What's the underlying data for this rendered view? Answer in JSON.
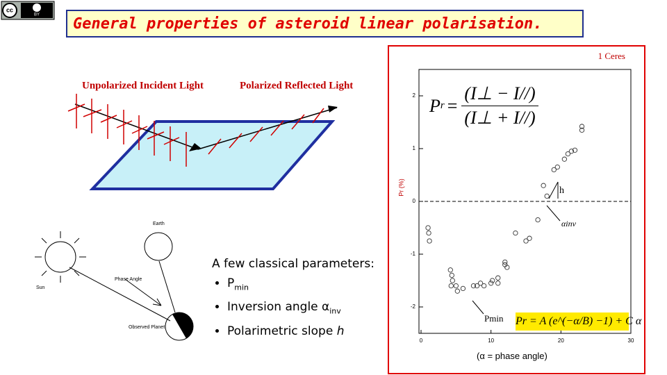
{
  "title": "General properties of asteroid linear polarisation.",
  "license": {
    "cc": "cc",
    "by": "BY"
  },
  "polarization_diagram": {
    "incident": "Unpolarized Incident Light",
    "reflected": "Polarized Reflected Light"
  },
  "geometry_diagram": {
    "earth": "Earth",
    "sun": "Sun",
    "phase_angle": "Phase Angle",
    "planet": "Observed Planet"
  },
  "parameters": {
    "heading": "A few classical parameters:",
    "items": [
      {
        "text": "P",
        "sub": "min"
      },
      {
        "text": "Inversion angle α",
        "sub": "inv"
      },
      {
        "text": "Polarimetric slope ",
        "italic": "h"
      }
    ]
  },
  "caption": "(α = phase angle)",
  "chart_data": {
    "type": "scatter",
    "title": "1 Ceres",
    "ylabel": "Pr (%)",
    "formula_ratio": {
      "lhs": "P",
      "lhs_sub": "r",
      "eq": "=",
      "numerator": "(I⊥ − I//)",
      "denominator": "(I⊥ + I//)"
    },
    "formula_fit": "Pr = A (e^(−α/B) −1) + C α",
    "annotations": {
      "slope": "h",
      "inversion": "αinv",
      "minimum": "Pmin"
    },
    "x": [
      1,
      1.1,
      1.2,
      4.2,
      4.4,
      4.5,
      4.3,
      5,
      5.2,
      6,
      7.5,
      8,
      8.5,
      9,
      10,
      10.2,
      11,
      11,
      12,
      12,
      12.3,
      13.5,
      15,
      15.5,
      16.7,
      17.5,
      18,
      19,
      19.5,
      20.5,
      21,
      21.5,
      22,
      23,
      23
    ],
    "y": [
      -0.5,
      -0.6,
      -0.75,
      -1.3,
      -1.4,
      -1.5,
      -1.6,
      -1.6,
      -1.7,
      -1.65,
      -1.6,
      -1.6,
      -1.55,
      -1.6,
      -1.55,
      -1.5,
      -1.45,
      -1.55,
      -1.2,
      -1.15,
      -1.25,
      -0.6,
      -0.75,
      -0.7,
      -0.35,
      0.3,
      0.1,
      0.6,
      0.65,
      0.8,
      0.9,
      0.95,
      0.97,
      1.35,
      1.42
    ],
    "reference_line": 0,
    "xlim": [
      0,
      30
    ],
    "ylim": [
      -2.5,
      2.5
    ],
    "xticks": [
      0,
      10,
      20,
      30
    ],
    "yticks": [
      2,
      1,
      0,
      -1,
      -2
    ],
    "color": "#333333"
  }
}
